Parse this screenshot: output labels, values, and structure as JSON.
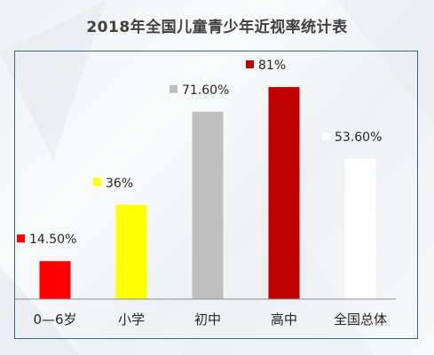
{
  "chart_data": {
    "type": "bar",
    "title": "2018年全国儿童青少年近视率统计表",
    "categories": [
      "0—6岁",
      "小学",
      "初中",
      "高中",
      "全国总体"
    ],
    "values": [
      14.5,
      36,
      71.6,
      81,
      53.6
    ],
    "data_labels": [
      "14.50%",
      "36%",
      "71.60%",
      "81%",
      "53.60%"
    ],
    "colors": [
      "#ff0000",
      "#ffff00",
      "#bfbfbf",
      "#c00000",
      "#ffffff"
    ],
    "ylim": [
      0,
      100
    ],
    "xlabel": "",
    "ylabel": "",
    "grid": false,
    "legend": "none"
  }
}
